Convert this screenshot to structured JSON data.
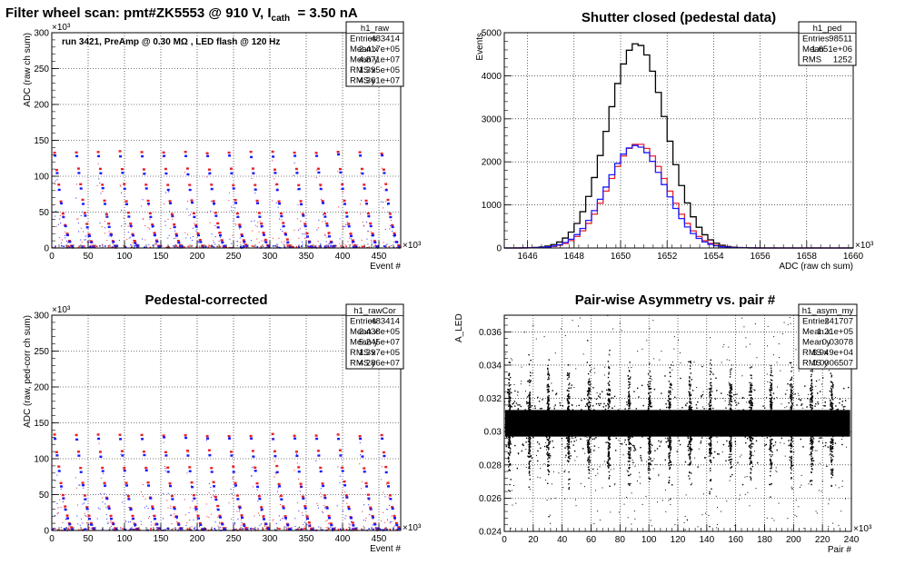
{
  "header_title": "Filter wheel scan: pmt#ZK5553 @   910 V, I",
  "header_sub": "cath",
  "header_tail": "= 3.50 nA",
  "colors": {
    "red": "#e8202a",
    "blue": "#1a1aff",
    "black": "#000000",
    "grid": "#000000"
  },
  "chart_data": [
    {
      "id": "raw",
      "type": "scatter",
      "title": "",
      "xlabel": "Event #",
      "ylabel": "ADC (raw ch sum)",
      "x_exponent": "×10³",
      "y_exponent": "×10³",
      "xlim": [
        0,
        480
      ],
      "ylim": [
        0,
        300
      ],
      "xticks": [
        0,
        50,
        100,
        150,
        200,
        250,
        300,
        350,
        400,
        450
      ],
      "yticks": [
        0,
        50,
        100,
        150,
        200,
        250,
        300
      ],
      "annotation": "run 3421, PreAmp @ 0.30 MΩ , LED flash @  120 Hz",
      "levels_red": [
        133,
        110,
        88,
        66,
        48,
        33,
        20,
        10,
        3
      ],
      "levels_blue": [
        128,
        104,
        82,
        62,
        44,
        30,
        17,
        8,
        2
      ],
      "cycle_starts": [
        0,
        30,
        60,
        90,
        120,
        150,
        180,
        210,
        240,
        270,
        300,
        330,
        360,
        390,
        420,
        450
      ],
      "stats": {
        "name": "h1_raw",
        "rows": [
          [
            "Entries",
            "483414"
          ],
          [
            "Mean x",
            "2.417e+05"
          ],
          [
            "Mean y",
            "4.871e+07"
          ],
          [
            "RMS x",
            "1.395e+05"
          ],
          [
            "RMS y",
            "4.361e+07"
          ]
        ]
      }
    },
    {
      "id": "ped",
      "type": "line",
      "title": "Shutter closed (pedestal data)",
      "xlabel": "ADC (raw ch sum)",
      "ylabel": "Events",
      "x_exponent": "×10³",
      "xlim": [
        1645,
        1660
      ],
      "ylim": [
        0,
        5000
      ],
      "xticks": [
        1646,
        1648,
        1650,
        1652,
        1654,
        1656,
        1658,
        1660
      ],
      "yticks": [
        0,
        1000,
        2000,
        3000,
        4000,
        5000
      ],
      "series": [
        {
          "name": "total",
          "color": "#000000",
          "mean": 1650.7,
          "sigma": 1.25,
          "peak": 4750
        },
        {
          "name": "ped_red",
          "color": "#e8202a",
          "mean": 1650.75,
          "sigma": 1.25,
          "peak": 2420
        },
        {
          "name": "ped_blue",
          "color": "#1a1aff",
          "mean": 1650.65,
          "sigma": 1.25,
          "peak": 2380
        }
      ],
      "stats": {
        "name": "h1_ped",
        "rows": [
          [
            "Entries",
            "98511"
          ],
          [
            "Mean",
            "1.651e+06"
          ],
          [
            "RMS",
            "1252"
          ]
        ]
      }
    },
    {
      "id": "rawCor",
      "type": "scatter",
      "title": "Pedestal-corrected",
      "xlabel": "Event #",
      "ylabel": "ADC (raw, ped-corr ch sum)",
      "x_exponent": "×10³",
      "y_exponent": "×10³",
      "xlim": [
        0,
        480
      ],
      "ylim": [
        0,
        300
      ],
      "xticks": [
        0,
        50,
        100,
        150,
        200,
        250,
        300,
        350,
        400,
        450
      ],
      "yticks": [
        0,
        50,
        100,
        150,
        200,
        250,
        300
      ],
      "levels_red": [
        133,
        110,
        88,
        66,
        48,
        33,
        20,
        10,
        3
      ],
      "levels_blue": [
        128,
        104,
        82,
        62,
        44,
        30,
        17,
        8,
        2
      ],
      "cycle_starts": [
        0,
        30,
        60,
        90,
        120,
        150,
        180,
        210,
        240,
        270,
        300,
        330,
        360,
        390,
        420,
        450
      ],
      "stats": {
        "name": "h1_rawCor",
        "rows": [
          [
            "Entries",
            "483414"
          ],
          [
            "Mean x",
            "2.438e+05"
          ],
          [
            "Mean y",
            "5.245e+07"
          ],
          [
            "RMS x",
            "1.397e+05"
          ],
          [
            "RMS y",
            "4.286e+07"
          ]
        ]
      }
    },
    {
      "id": "asym",
      "type": "scatter",
      "title": "Pair-wise Asymmetry vs. pair #",
      "xlabel": "Pair #",
      "ylabel": "A_LED",
      "x_exponent": "×10³",
      "xlim": [
        0,
        240
      ],
      "ylim": [
        0.024,
        0.037
      ],
      "xticks": [
        0,
        20,
        40,
        60,
        80,
        100,
        120,
        140,
        160,
        180,
        200,
        220,
        240
      ],
      "yticks": [
        0.024,
        0.026,
        0.028,
        0.03,
        0.032,
        0.034,
        0.036
      ],
      "band_center": 0.0305,
      "band_halfwidth": 0.0008,
      "spike_x": [
        3,
        17,
        30,
        44,
        58,
        72,
        86,
        100,
        114,
        128,
        142,
        156,
        170,
        184,
        198,
        212,
        226
      ],
      "stats": {
        "name": "h1_asym_my",
        "rows": [
          [
            "Entries",
            "241707"
          ],
          [
            "Mean x",
            "1.21e+05"
          ],
          [
            "Mean y",
            "0.03078"
          ],
          [
            "RMS x",
            "6.949e+04"
          ],
          [
            "RMS y",
            "0.0006507"
          ]
        ]
      }
    }
  ]
}
